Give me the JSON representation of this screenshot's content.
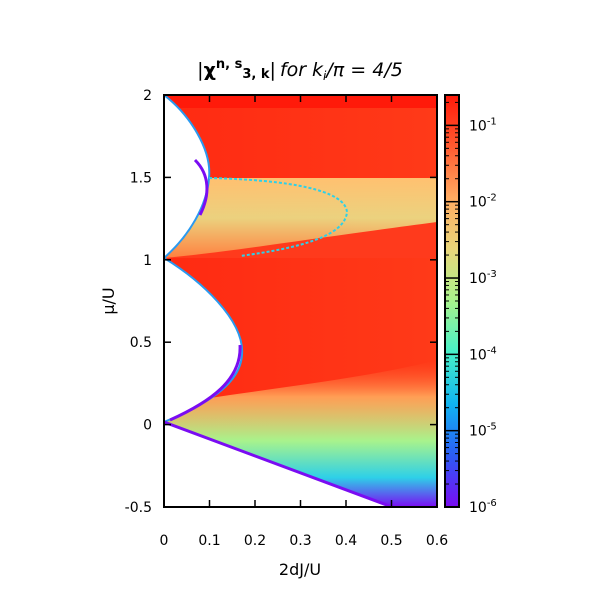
{
  "chart_data": {
    "type": "heatmap",
    "title": {
      "prefix": "|",
      "chi": "χ",
      "sup": "n, s",
      "sub": "3, k",
      "abs_close": "|",
      "tail_for": "for k",
      "tail_sub": "i",
      "tail_rest": "/π = 4/5"
    },
    "xlabel": "2dJ/U",
    "ylabel": "μ/U",
    "xlim": [
      0,
      0.6
    ],
    "ylim": [
      -0.5,
      2
    ],
    "xticks": [
      "0",
      "0.1",
      "0.2",
      "0.3",
      "0.4",
      "0.5",
      "0.6"
    ],
    "yticks": [
      "-0.5",
      "0",
      "0.5",
      "1",
      "1.5",
      "2"
    ],
    "colorbar": {
      "scale": "log",
      "range": [
        1e-06,
        0.25
      ],
      "ticks": [
        {
          "base": "10",
          "exp": "-6",
          "value": 1e-06
        },
        {
          "base": "10",
          "exp": "-5",
          "value": 1e-05
        },
        {
          "base": "10",
          "exp": "-4",
          "value": 0.0001
        },
        {
          "base": "10",
          "exp": "-3",
          "value": 0.001
        },
        {
          "base": "10",
          "exp": "-2",
          "value": 0.01
        },
        {
          "base": "10",
          "exp": "-1",
          "value": 0.1
        }
      ],
      "colormap": [
        "#7a0cf2",
        "#2b5cf5",
        "#10b4f0",
        "#46f0c8",
        "#a8f38c",
        "#e9d67a",
        "#ffab61",
        "#ff5a30",
        "#ff1a0a"
      ]
    },
    "mott_lobes": [
      {
        "n": 0,
        "mu_range": [
          -0.5,
          0.0
        ],
        "tip_x": 0
      },
      {
        "n": 1,
        "mu_range": [
          0,
          1
        ],
        "tip_x": 0.172
      },
      {
        "n": 2,
        "mu_range": [
          1,
          2
        ],
        "tip_x": 0.1
      }
    ],
    "features": {
      "upper_arc": {
        "mu_range": [
          1.0,
          1.5
        ],
        "max_x": 0.4
      },
      "lower_boundary": {
        "from": [
          0,
          0
        ],
        "to": [
          0.52,
          -0.5
        ]
      }
    },
    "grid": false
  }
}
